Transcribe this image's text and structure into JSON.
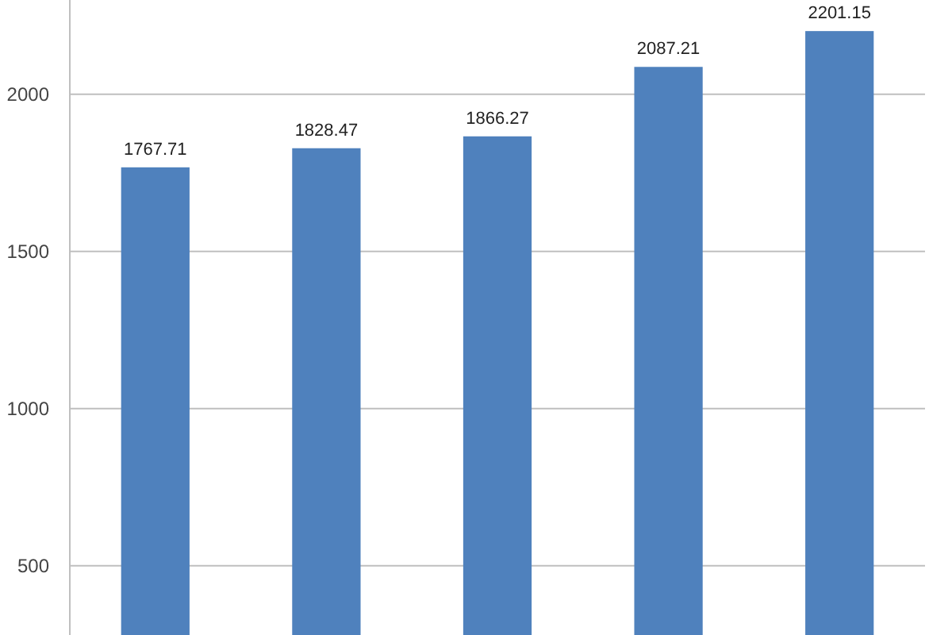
{
  "chart_data": {
    "type": "bar",
    "categories": [
      null,
      null,
      null,
      null,
      null
    ],
    "values": [
      1767.71,
      1828.47,
      1866.27,
      2087.21,
      2201.15
    ],
    "color": "#4f81bd",
    "ylim": [
      280,
      2300
    ],
    "yticks": [
      500,
      1000,
      1500,
      2000
    ],
    "grid": "y",
    "data_labels": true
  }
}
